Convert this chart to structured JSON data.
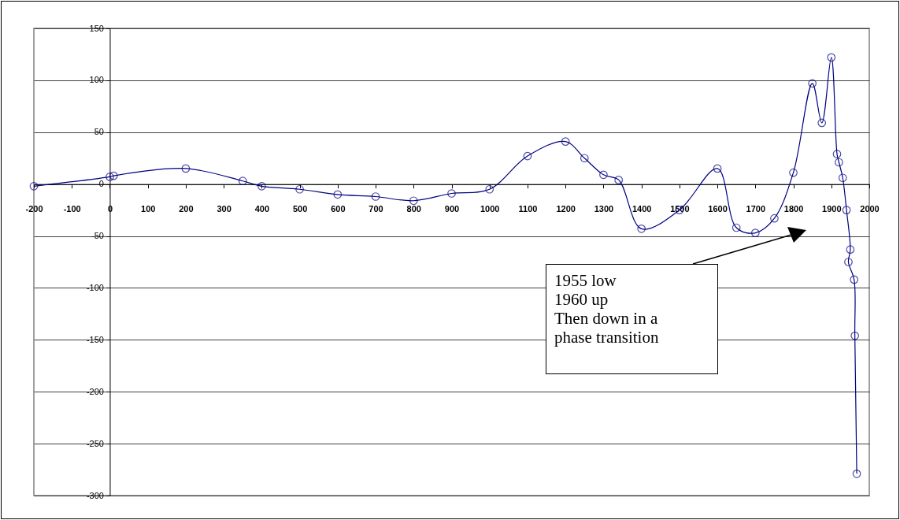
{
  "chart_data": {
    "type": "line",
    "x": [
      -200,
      0,
      10,
      200,
      350,
      400,
      500,
      600,
      700,
      800,
      900,
      1000,
      1100,
      1200,
      1250,
      1300,
      1340,
      1400,
      1500,
      1600,
      1650,
      1700,
      1750,
      1800,
      1850,
      1875,
      1900,
      1915,
      1920,
      1930,
      1940,
      1950,
      1945,
      1960,
      1962,
      1967
    ],
    "series": [
      {
        "color": "#000080",
        "values": [
          -2,
          7,
          8,
          15,
          3,
          -2,
          -5,
          -10,
          -12,
          -16,
          -9,
          -5,
          27,
          41,
          25,
          9,
          4,
          -43,
          -25,
          15,
          -42,
          -47,
          -33,
          11,
          97,
          59,
          122,
          29,
          21,
          6,
          -25,
          -63,
          -75,
          -92,
          -146,
          -279
        ]
      }
    ],
    "xlim": [
      -200,
      2000
    ],
    "xticks": [
      -200,
      -100,
      0,
      100,
      200,
      300,
      400,
      500,
      600,
      700,
      800,
      900,
      1000,
      1100,
      1200,
      1300,
      1400,
      1500,
      1600,
      1700,
      1800,
      1900,
      2000
    ],
    "ylim": [
      -300,
      150
    ],
    "yticks": [
      -300,
      -250,
      -200,
      -150,
      -100,
      -50,
      0,
      50,
      100,
      150
    ],
    "grid": "y",
    "marker": "circle",
    "line_style": "solid",
    "annotations": [
      "1955 low\n1960 up\nThen down in a\nphase transition"
    ]
  }
}
